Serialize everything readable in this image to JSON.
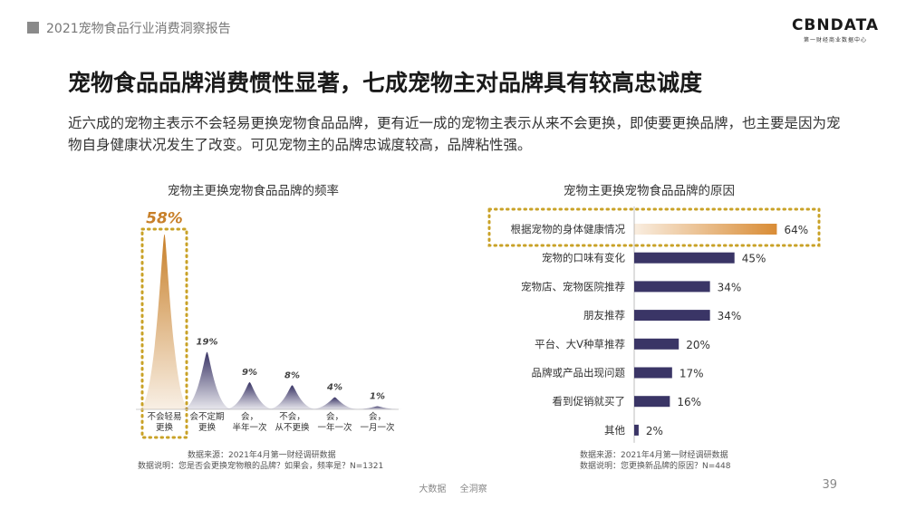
{
  "header": {
    "report_title": "2021宠物食品行业消费洞察报告",
    "logo_main": "CBNDATA",
    "logo_sub": "第一财经商业数据中心"
  },
  "title": "宠物食品品牌消费惯性显著，七成宠物主对品牌具有较高忠诚度",
  "description": "近六成的宠物主表示不会轻易更换宠物食品品牌，更有近一成的宠物主表示从来不会更换，即使要更换品牌，也主要是因为宠物自身健康状况发生了改变。可见宠物主的品牌忠诚度较高，品牌粘性强。",
  "left_chart": {
    "title": "宠物主更换宠物食品品牌的频率",
    "source_line1": "数据来源：2021年4月第一财经调研数据",
    "source_line2": "数据说明：您是否会更换宠物粮的品牌？如果会，频率是？N=1321"
  },
  "right_chart": {
    "title": "宠物主更换宠物食品品牌的原因",
    "source_line1": "数据来源：2021年4月第一财经调研数据",
    "source_line2": "数据说明：您更换新品牌的原因？N=448"
  },
  "chart_data": [
    {
      "type": "area",
      "categories": [
        "不会轻易\n更换",
        "会不定期\n更换",
        "会，\n半年一次",
        "不会，\n从不更换",
        "会，\n一年一次",
        "会，\n一月一次"
      ],
      "values": [
        58,
        19,
        9,
        8,
        4,
        1
      ],
      "value_labels": [
        "58%",
        "19%",
        "9%",
        "8%",
        "4%",
        "1%"
      ],
      "highlight_index": 0,
      "ylim": [
        0,
        60
      ],
      "colors": {
        "highlight": "#c8802a",
        "normal": "#3a3566",
        "highlight_label": "#c8802a",
        "dotted_box": "#c9a227"
      }
    },
    {
      "type": "bar",
      "orientation": "horizontal",
      "categories": [
        "根据宠物的身体健康情况",
        "宠物的口味有变化",
        "宠物店、宠物医院推荐",
        "朋友推荐",
        "平台、大V种草推荐",
        "品牌或产品出现问题",
        "看到促销就买了",
        "其他"
      ],
      "values": [
        64,
        45,
        34,
        34,
        20,
        17,
        16,
        2
      ],
      "value_labels": [
        "64%",
        "45%",
        "34%",
        "34%",
        "20%",
        "17%",
        "16%",
        "2%"
      ],
      "highlight_index": 0,
      "xlim": [
        0,
        70
      ],
      "colors": {
        "highlight": "#d98c35",
        "normal": "#3a3566",
        "dotted_box": "#c9a227"
      }
    }
  ],
  "footer": {
    "left": "大数据",
    "right": "全洞察",
    "page": "39"
  }
}
